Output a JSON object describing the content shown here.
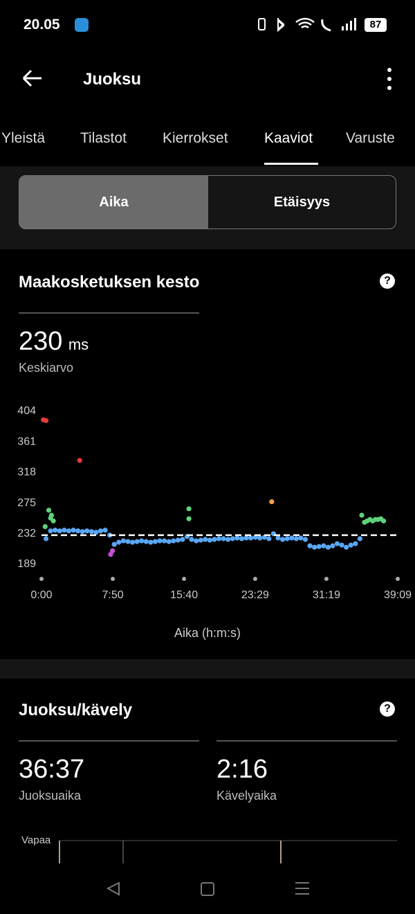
{
  "status_bar": {
    "time": "20.05",
    "battery": "87"
  },
  "header": {
    "title": "Juoksu"
  },
  "tabs": [
    "Yleistä",
    "Tilastot",
    "Kierrokset",
    "Kaaviot",
    "Varuste"
  ],
  "active_tab": 3,
  "segments": [
    "Aika",
    "Etäisyys"
  ],
  "cards": [
    {
      "title": "Maakosketuksen kesto",
      "value": 230,
      "unit": "ms",
      "label": "Keskiarvo",
      "chart_data": {
        "type": "scatter",
        "x_label": "Aika (h:m:s)",
        "xlim": [
          0,
          39.15
        ],
        "ylim": [
          189,
          404
        ],
        "xticks": [
          {
            "value": 0,
            "label": "0:00"
          },
          {
            "value": 7.833,
            "label": "7:50"
          },
          {
            "value": 15.667,
            "label": "15:40"
          },
          {
            "value": 23.483,
            "label": "23:29"
          },
          {
            "value": 31.317,
            "label": "31:19"
          },
          {
            "value": 39.15,
            "label": "39:09"
          }
        ],
        "yticks": [
          189,
          232,
          275,
          318,
          361,
          404
        ],
        "average_line": true,
        "series": [
          {
            "color": "#5aa7f5",
            "x": [
              0.5,
              1,
              1.5,
              2,
              2.5,
              3,
              3.5,
              4,
              4.5,
              5,
              5.5,
              6,
              6.5,
              7,
              7.5,
              8,
              8.5,
              9,
              9.5,
              10,
              10.5,
              11,
              11.5,
              12,
              12.5,
              13,
              13.5,
              14,
              14.5,
              15,
              15.5,
              16,
              16.5,
              17,
              17.5,
              18,
              18.5,
              19,
              19.5,
              20,
              20.5,
              21,
              21.5,
              22,
              22.5,
              23,
              23.5,
              24,
              24.5,
              25,
              25.5,
              26,
              26.5,
              27,
              27.5,
              28,
              28.5,
              29,
              29.5,
              30,
              30.5,
              31,
              31.5,
              32,
              32.5,
              33,
              33.5,
              34,
              34.5,
              35
            ],
            "values": [
              225,
              236,
              237,
              236,
              237,
              236,
              237,
              236,
              235,
              236,
              235,
              234,
              236,
              237,
              230,
              217,
              220,
              222,
              221,
              220,
              221,
              222,
              221,
              220,
              221,
              222,
              222,
              221,
              222,
              223,
              224,
              228,
              224,
              222,
              223,
              224,
              223,
              224,
              225,
              225,
              224,
              225,
              226,
              225,
              226,
              226,
              227,
              226,
              227,
              225,
              232,
              226,
              224,
              225,
              226,
              225,
              226,
              224,
              215,
              213,
              214,
              215,
              213,
              215,
              218,
              216,
              213,
              216,
              218,
              225
            ]
          },
          {
            "color": "#5fd37a",
            "x": [
              0.4,
              0.8,
              1.0,
              1.1,
              1.3,
              16.2,
              16.2,
              35.2,
              35.5,
              35.8,
              36.1,
              36.4,
              36.7,
              37.0,
              37.3,
              37.6
            ],
            "values": [
              242,
              265,
              254,
              258,
              250,
              267,
              253,
              258,
              248,
              250,
              252,
              250,
              252,
              252,
              253,
              250
            ]
          },
          {
            "color": "#e83a3a",
            "x": [
              0.2,
              0.5,
              4.2
            ],
            "values": [
              392,
              391,
              335
            ]
          },
          {
            "color": "#f5a04a",
            "x": [
              25.3
            ],
            "values": [
              277
            ]
          },
          {
            "color": "#c94fd6",
            "x": [
              7.6,
              7.8
            ],
            "values": [
              203,
              208
            ]
          }
        ]
      }
    },
    {
      "title": "Juoksu/kävely",
      "stats": [
        {
          "value": "36:37",
          "label": "Juoksuaika"
        },
        {
          "value": "2:16",
          "label": "Kävelyaika"
        }
      ],
      "chart_label": "Vapaa"
    }
  ]
}
